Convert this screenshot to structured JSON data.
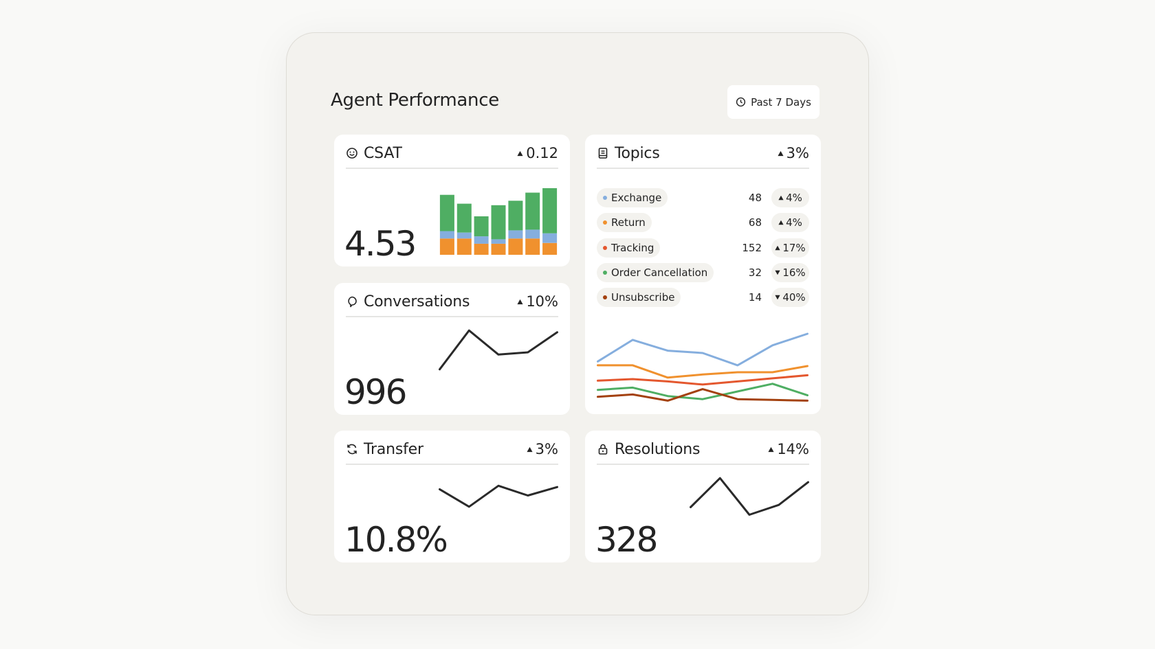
{
  "header": {
    "title": "Agent Performance",
    "range_button": "Past 7 Days"
  },
  "cards": [
    {
      "title": "CSAT",
      "delta": "0.12",
      "direction": "up",
      "value": "4.53",
      "chart": {
        "type": "stacked-bar",
        "ylim": [
          0,
          90
        ],
        "series": [
          {
            "color": "#f0912e",
            "values": [
              22,
              22,
              15,
              15,
              22,
              22,
              16
            ]
          },
          {
            "color": "#85aede",
            "values": [
              10,
              8,
              10,
              6,
              11,
              12,
              13
            ]
          },
          {
            "color": "#4fae63",
            "values": [
              49,
              39,
              27,
              46,
              40,
              50,
              61
            ]
          }
        ]
      }
    },
    {
      "title": "Topics",
      "delta": "3%",
      "direction": "up",
      "rows": [
        {
          "name": "Exchange",
          "count": "48",
          "delta": "4%",
          "direction": "up",
          "color": "#85aede",
          "values": [
            56,
            84,
            70,
            67,
            51,
            77,
            92
          ]
        },
        {
          "name": "Return",
          "count": "68",
          "delta": "4%",
          "direction": "up",
          "color": "#f0912e",
          "values": [
            51,
            51,
            35,
            39,
            42,
            42,
            50
          ]
        },
        {
          "name": "Tracking",
          "count": "152",
          "delta": "17%",
          "direction": "up",
          "color": "#e4572e",
          "values": [
            31,
            33,
            30,
            26,
            30,
            34,
            38
          ]
        },
        {
          "name": "Order Cancellation",
          "count": "32",
          "delta": "16%",
          "direction": "down",
          "color": "#4fae63",
          "values": [
            19,
            22,
            11,
            7,
            17,
            27,
            12
          ]
        },
        {
          "name": "Unsubscribe",
          "count": "14",
          "delta": "40%",
          "direction": "down",
          "color": "#a3410f",
          "values": [
            10,
            13,
            5,
            20,
            7,
            6,
            5
          ]
        }
      ],
      "chart": {
        "type": "multi-line",
        "ylim": [
          0,
          100
        ]
      }
    },
    {
      "title": "Conversations",
      "delta": "10%",
      "direction": "up",
      "value": "996",
      "chart": {
        "type": "line",
        "ylim": [
          0,
          100
        ],
        "color": "#2a2a2a",
        "values": [
          5,
          92,
          38,
          43,
          88
        ]
      }
    },
    {
      "title": "Transfer",
      "delta": "3%",
      "direction": "up",
      "value": "10.8%",
      "chart": {
        "type": "line",
        "ylim": [
          0,
          100
        ],
        "color": "#2a2a2a",
        "values": [
          67,
          28,
          75,
          53,
          72
        ]
      }
    },
    {
      "title": "Resolutions",
      "delta": "14%",
      "direction": "up",
      "value": "328",
      "chart": {
        "type": "line",
        "ylim": [
          0,
          100
        ],
        "color": "#2a2a2a",
        "values": [
          27,
          92,
          10,
          32,
          83
        ]
      }
    }
  ]
}
